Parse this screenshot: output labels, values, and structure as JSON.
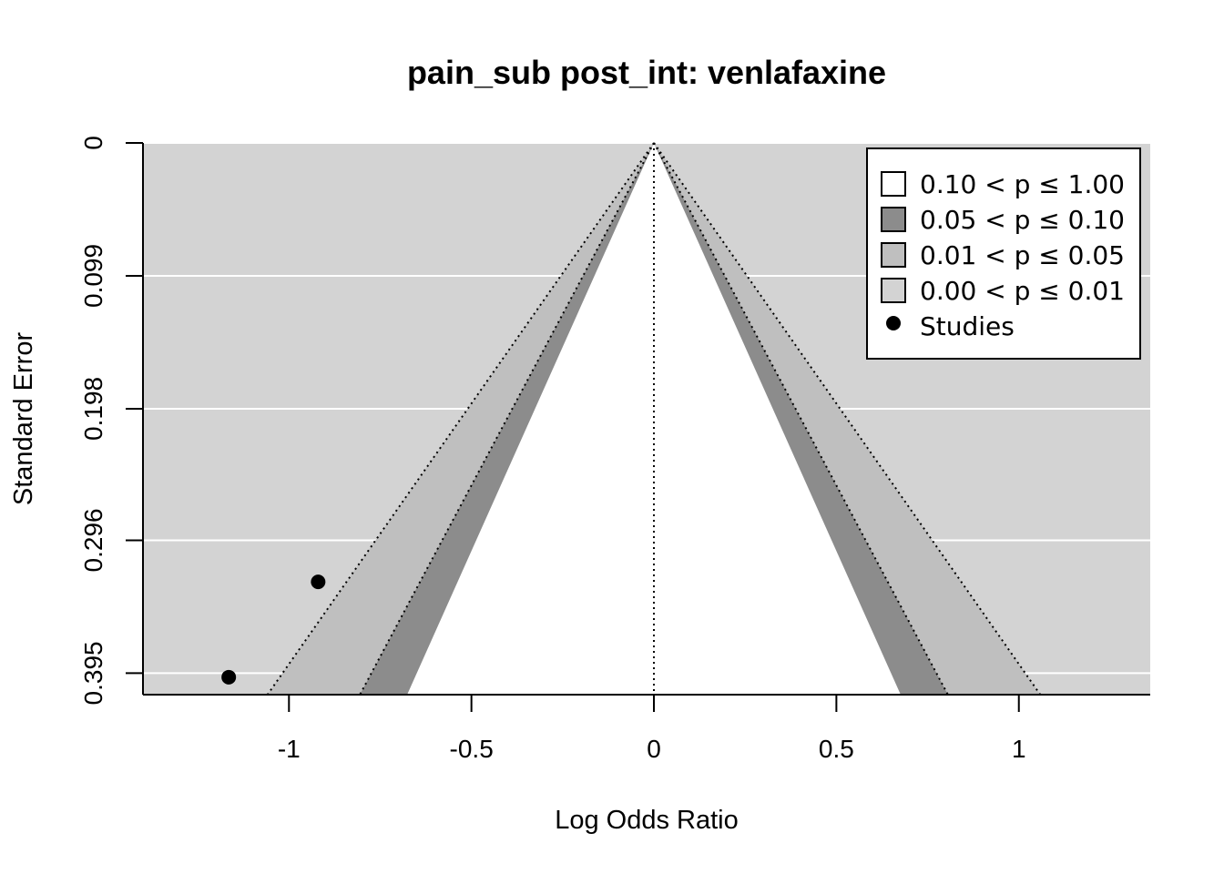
{
  "chart_data": {
    "type": "scatter",
    "subtype": "contour-enhanced funnel plot",
    "title": "pain_sub post_int: venlafaxine",
    "xlabel": "Log Odds Ratio",
    "ylabel": "Standard Error",
    "xlim": [
      -1.4,
      1.36
    ],
    "ylim": [
      0,
      0.411
    ],
    "y_reversed": true,
    "x_ticks": [
      -1,
      -0.5,
      0,
      0.5,
      1
    ],
    "x_tick_labels": [
      "-1",
      "-0.5",
      "0",
      "0.5",
      "1"
    ],
    "y_ticks": [
      0,
      0.099,
      0.198,
      0.296,
      0.395
    ],
    "y_tick_labels": [
      "0",
      "0.099",
      "0.198",
      "0.296",
      "0.395"
    ],
    "grid": true,
    "background_color": "#d3d3d3",
    "center_line": 0,
    "contours": [
      {
        "label": "0.10 < p ≤ 1.00",
        "z": 1.645,
        "color": "#ffffff"
      },
      {
        "label": "0.05 < p ≤ 0.10",
        "z": 1.96,
        "color": "#8c8c8c"
      },
      {
        "label": "0.01 < p ≤ 0.05",
        "z": 2.576,
        "color": "#bfbfbf"
      },
      {
        "label": "0.00 < p ≤ 0.01",
        "color": "#d3d3d3"
      }
    ],
    "legend": {
      "position": "top-right",
      "entries": [
        {
          "label": "0.10 < p ≤ 1.00",
          "kind": "box",
          "color": "#ffffff"
        },
        {
          "label": "0.05 < p ≤ 0.10",
          "kind": "box",
          "color": "#8c8c8c"
        },
        {
          "label": "0.01 < p ≤ 0.05",
          "kind": "box",
          "color": "#bfbfbf"
        },
        {
          "label": "0.00 < p ≤ 0.01",
          "kind": "box",
          "color": "#d3d3d3"
        },
        {
          "label": "Studies",
          "kind": "point",
          "color": "#000000"
        }
      ]
    },
    "series": [
      {
        "name": "Studies",
        "points": [
          {
            "x": -0.92,
            "y": 0.327
          },
          {
            "x": -1.165,
            "y": 0.398
          }
        ]
      }
    ]
  }
}
